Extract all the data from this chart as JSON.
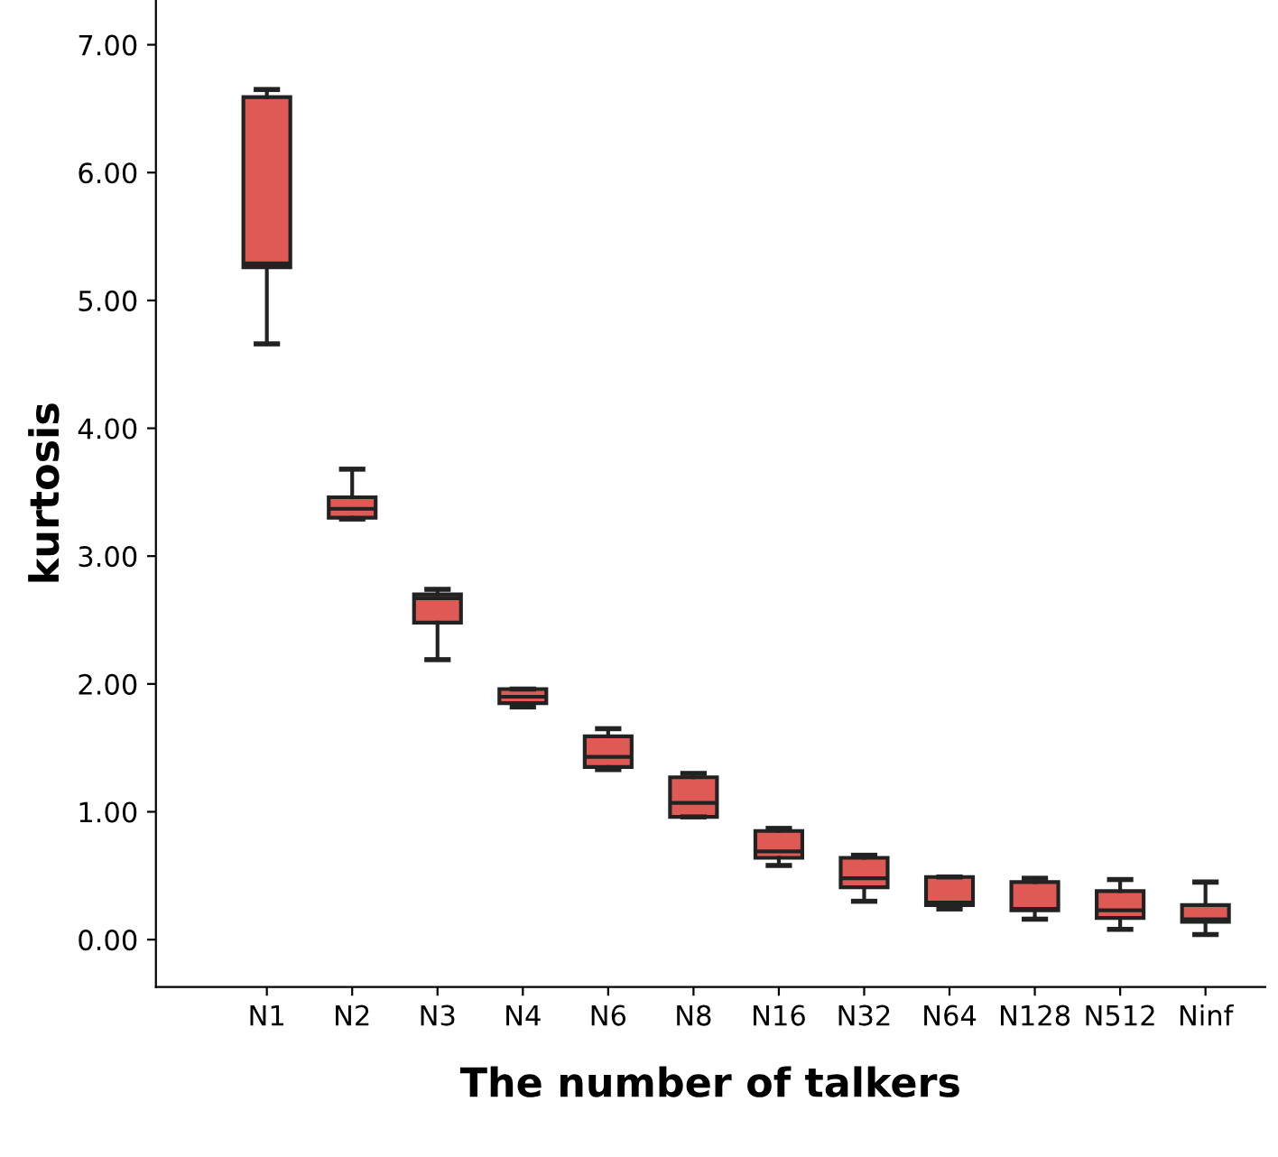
{
  "chart_data": {
    "type": "box",
    "xlabel": "The number of talkers",
    "ylabel": "kurtosis",
    "categories": [
      "N1",
      "N2",
      "N3",
      "N4",
      "N6",
      "N8",
      "N16",
      "N32",
      "N64",
      "N128",
      "N512",
      "Ninf"
    ],
    "color": "#e05a55",
    "boxes": [
      {
        "low": 4.66,
        "q1": 5.26,
        "median": 5.29,
        "q3": 6.59,
        "high": 6.65
      },
      {
        "low": 3.29,
        "q1": 3.3,
        "median": 3.37,
        "q3": 3.46,
        "high": 3.68
      },
      {
        "low": 2.19,
        "q1": 2.48,
        "median": 2.67,
        "q3": 2.7,
        "high": 2.74
      },
      {
        "low": 1.82,
        "q1": 1.85,
        "median": 1.9,
        "q3": 1.96,
        "high": 1.96
      },
      {
        "low": 1.33,
        "q1": 1.35,
        "median": 1.43,
        "q3": 1.59,
        "high": 1.65
      },
      {
        "low": 0.96,
        "q1": 0.96,
        "median": 1.07,
        "q3": 1.27,
        "high": 1.3
      },
      {
        "low": 0.58,
        "q1": 0.64,
        "median": 0.69,
        "q3": 0.85,
        "high": 0.87
      },
      {
        "low": 0.3,
        "q1": 0.41,
        "median": 0.48,
        "q3": 0.64,
        "high": 0.66
      },
      {
        "low": 0.24,
        "q1": 0.27,
        "median": 0.29,
        "q3": 0.49,
        "high": 0.49
      },
      {
        "low": 0.16,
        "q1": 0.23,
        "median": 0.24,
        "q3": 0.45,
        "high": 0.48
      },
      {
        "low": 0.08,
        "q1": 0.17,
        "median": 0.23,
        "q3": 0.38,
        "high": 0.47
      },
      {
        "low": 0.04,
        "q1": 0.14,
        "median": 0.16,
        "q3": 0.27,
        "high": 0.45
      }
    ],
    "ylim": [
      -0.37,
      7.35
    ],
    "yticks": [
      {
        "value": 0,
        "label": "0.00"
      },
      {
        "value": 1,
        "label": "1.00"
      },
      {
        "value": 2,
        "label": "2.00"
      },
      {
        "value": 3,
        "label": "3.00"
      },
      {
        "value": 4,
        "label": "4.00"
      },
      {
        "value": 5,
        "label": "5.00"
      },
      {
        "value": 6,
        "label": "6.00"
      },
      {
        "value": 7,
        "label": "7.00"
      }
    ],
    "grid": false
  }
}
